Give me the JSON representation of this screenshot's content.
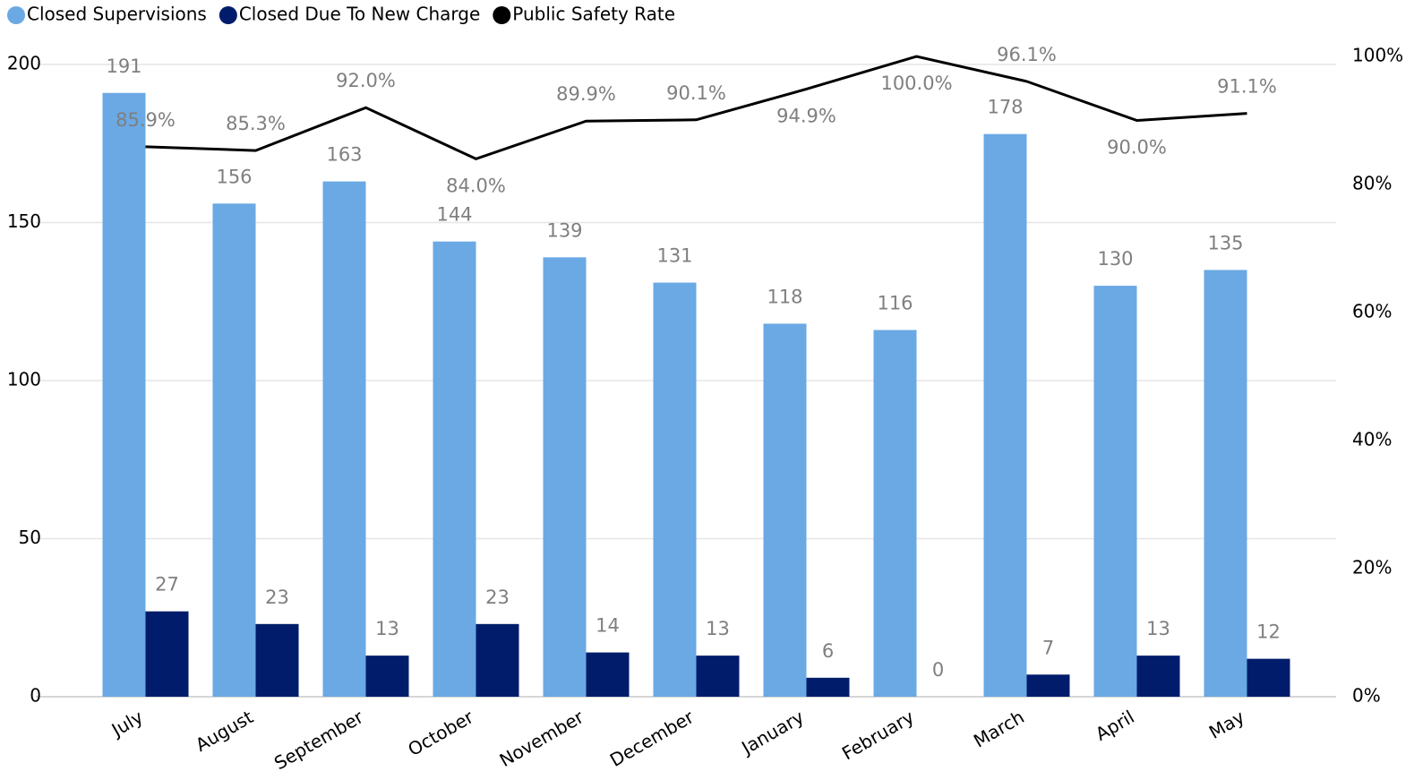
{
  "chart_data": {
    "type": "bar_line",
    "categories": [
      "July",
      "August",
      "September",
      "October",
      "November",
      "December",
      "January",
      "February",
      "March",
      "April",
      "May"
    ],
    "series": [
      {
        "name": "Closed Supervisions",
        "color": "#6aa9e4",
        "type": "bar",
        "values": [
          191,
          156,
          163,
          144,
          139,
          131,
          118,
          116,
          178,
          130,
          135
        ]
      },
      {
        "name": "Closed Due To New Charge",
        "color": "#011c6b",
        "type": "bar",
        "values": [
          27,
          23,
          13,
          23,
          14,
          13,
          6,
          0,
          7,
          13,
          12
        ]
      },
      {
        "name": "Public Safety Rate",
        "color": "#000000",
        "type": "line",
        "axis": "y2",
        "values": [
          85.9,
          85.3,
          92.0,
          84.0,
          89.9,
          90.1,
          94.9,
          100.0,
          96.1,
          90.0,
          91.1
        ],
        "value_labels": [
          "85.9%",
          "85.3%",
          "92.0%",
          "84.0%",
          "89.9%",
          "90.1%",
          "94.9%",
          "100.0%",
          "96.1%",
          "90.0%",
          "91.1%"
        ]
      }
    ],
    "ylim": [
      0,
      200
    ],
    "yticks": [
      0,
      50,
      100,
      150,
      200
    ],
    "y2lim": [
      0,
      100
    ],
    "y2ticks": [
      {
        "value": 0,
        "label": "0%"
      },
      {
        "value": 20,
        "label": "20%"
      },
      {
        "value": 40,
        "label": "40%"
      },
      {
        "value": 60,
        "label": "60%"
      },
      {
        "value": 80,
        "label": "80%"
      },
      {
        "value": 100,
        "label": "100%"
      }
    ],
    "grid": true,
    "legend": "top-left"
  }
}
